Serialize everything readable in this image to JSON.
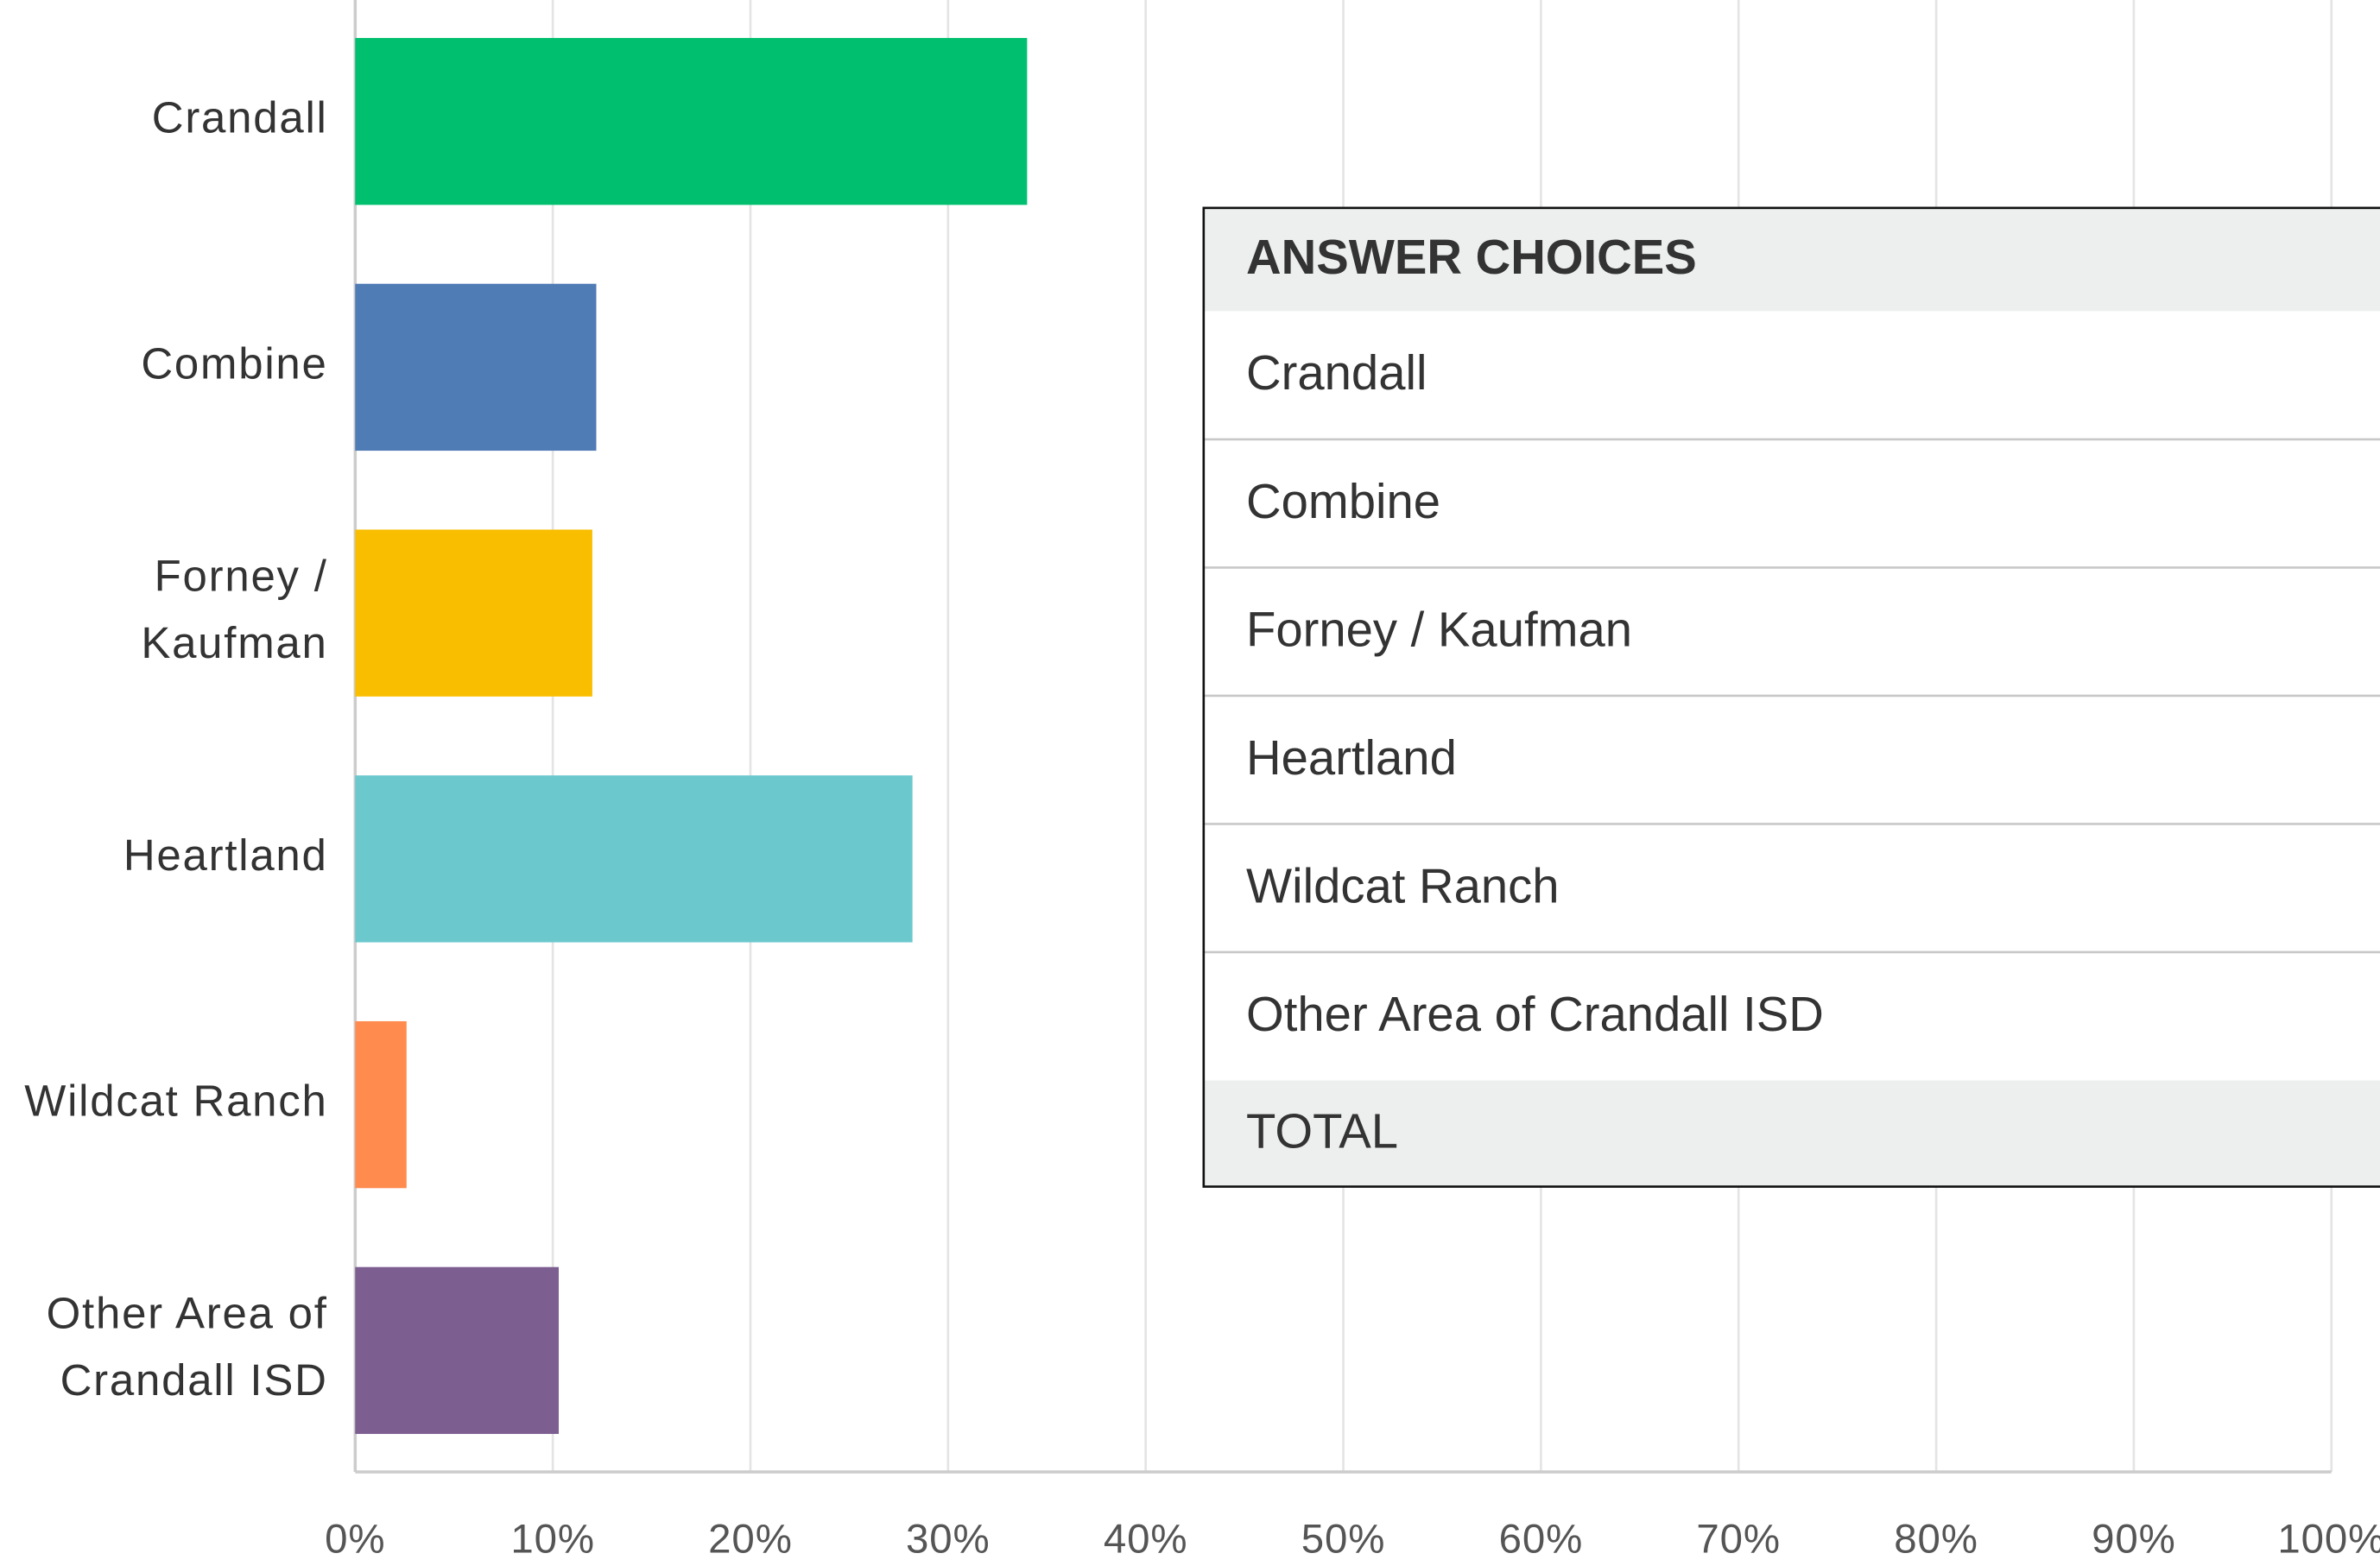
{
  "chart_data": {
    "type": "bar",
    "orientation": "horizontal",
    "categories": [
      "Crandall",
      "Combine",
      "Forney / Kaufman",
      "Heartland",
      "Wildcat Ranch",
      "Other Area of Crandall ISD"
    ],
    "values": [
      34,
      12.2,
      12,
      28.2,
      2.6,
      10.3
    ],
    "colors": [
      "#00bf6f",
      "#507cb6",
      "#f9be00",
      "#6bc8cd",
      "#ff8b4f",
      "#7d5e90"
    ],
    "xlim": [
      0,
      100
    ],
    "xticks": [
      {
        "value": 0,
        "label": "0%"
      },
      {
        "value": 10,
        "label": "10%"
      },
      {
        "value": 20,
        "label": "20%"
      },
      {
        "value": 30,
        "label": "30%"
      },
      {
        "value": 40,
        "label": "40%"
      },
      {
        "value": 50,
        "label": "50%"
      },
      {
        "value": 60,
        "label": "60%"
      },
      {
        "value": 70,
        "label": "70%"
      },
      {
        "value": 80,
        "label": "80%"
      },
      {
        "value": 90,
        "label": "90%"
      },
      {
        "value": 100,
        "label": "100%"
      }
    ],
    "grid": true
  },
  "table": {
    "header": "ANSWER CHOICES",
    "rows": [
      "Crandall",
      "Combine",
      "Forney / Kaufman",
      "Heartland",
      "Wildcat Ranch",
      "Other Area of Crandall ISD"
    ],
    "total": "TOTAL"
  }
}
